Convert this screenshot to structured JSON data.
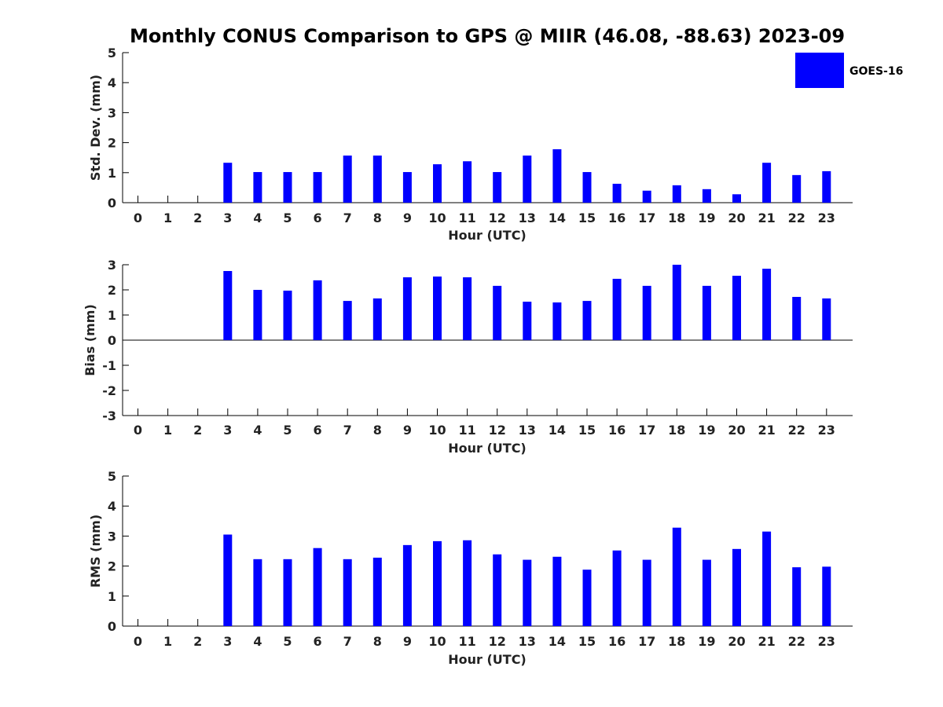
{
  "title": "Monthly CONUS Comparison to GPS @ MIIR (46.08, -88.63) 2023-09",
  "colors": {
    "bar": "#0000ff",
    "axis": "#000000"
  },
  "legend": {
    "label": "GOES-16",
    "placement": "top-right"
  },
  "chart_data": [
    {
      "type": "bar",
      "xlabel": "Hour (UTC)",
      "ylabel": "Std. Dev. (mm)",
      "ylim": [
        0,
        5
      ],
      "yticks": [
        "0",
        "1",
        "2",
        "3",
        "4",
        "5"
      ],
      "categories": [
        "0",
        "1",
        "2",
        "3",
        "4",
        "5",
        "6",
        "7",
        "8",
        "9",
        "10",
        "11",
        "12",
        "13",
        "14",
        "15",
        "16",
        "17",
        "18",
        "19",
        "20",
        "21",
        "22",
        "23"
      ],
      "series": [
        {
          "name": "GOES-16",
          "values": [
            null,
            null,
            null,
            1.33,
            1.02,
            1.02,
            1.02,
            1.57,
            1.57,
            1.02,
            1.28,
            1.38,
            1.02,
            1.57,
            1.78,
            1.02,
            0.63,
            0.4,
            0.58,
            0.45,
            0.28,
            1.33,
            0.92,
            1.05
          ]
        }
      ]
    },
    {
      "type": "bar",
      "xlabel": "Hour (UTC)",
      "ylabel": "Bias (mm)",
      "ylim": [
        -3,
        3
      ],
      "yticks": [
        "-3",
        "-2",
        "-1",
        "0",
        "1",
        "2",
        "3"
      ],
      "categories": [
        "0",
        "1",
        "2",
        "3",
        "4",
        "5",
        "6",
        "7",
        "8",
        "9",
        "10",
        "11",
        "12",
        "13",
        "14",
        "15",
        "16",
        "17",
        "18",
        "19",
        "20",
        "21",
        "22",
        "23"
      ],
      "series": [
        {
          "name": "GOES-16",
          "values": [
            null,
            null,
            null,
            2.75,
            2.0,
            1.97,
            2.38,
            1.56,
            1.66,
            2.5,
            2.53,
            2.5,
            2.16,
            1.53,
            1.5,
            1.56,
            2.44,
            2.16,
            3.0,
            2.16,
            2.56,
            2.84,
            1.72,
            1.66
          ]
        }
      ]
    },
    {
      "type": "bar",
      "xlabel": "Hour (UTC)",
      "ylabel": "RMS (mm)",
      "ylim": [
        0,
        5
      ],
      "yticks": [
        "0",
        "1",
        "2",
        "3",
        "4",
        "5"
      ],
      "categories": [
        "0",
        "1",
        "2",
        "3",
        "4",
        "5",
        "6",
        "7",
        "8",
        "9",
        "10",
        "11",
        "12",
        "13",
        "14",
        "15",
        "16",
        "17",
        "18",
        "19",
        "20",
        "21",
        "22",
        "23"
      ],
      "series": [
        {
          "name": "GOES-16",
          "values": [
            null,
            null,
            null,
            3.05,
            2.23,
            2.23,
            2.6,
            2.23,
            2.28,
            2.7,
            2.83,
            2.86,
            2.39,
            2.21,
            2.31,
            1.88,
            2.52,
            2.21,
            3.28,
            2.21,
            2.57,
            3.15,
            1.96,
            1.98
          ]
        }
      ]
    }
  ]
}
